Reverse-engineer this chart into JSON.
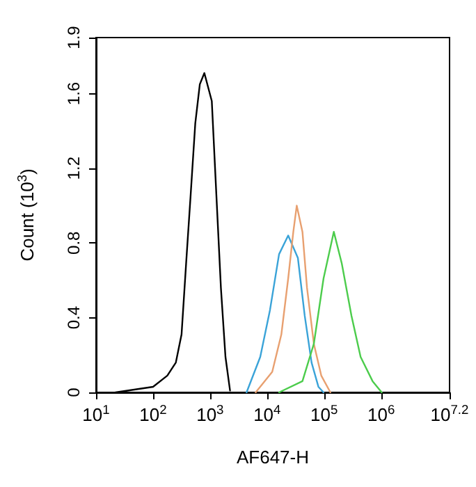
{
  "chart_data": {
    "type": "line",
    "xlabel": "AF647-H",
    "ylabel": "Count (10$^{3}$)",
    "log": "x",
    "grid": false,
    "marker": "none",
    "line_style": "solid",
    "xlim": [
      10,
      15848932
    ],
    "ylim": [
      0,
      1.9
    ],
    "xticks": [
      {
        "value": 10,
        "label": "10$^{1}$"
      },
      {
        "value": 100,
        "label": "10$^{2}$"
      },
      {
        "value": 1000,
        "label": "10$^{3}$"
      },
      {
        "value": 10000,
        "label": "10$^{4}$"
      },
      {
        "value": 100000,
        "label": "10$^{5}$"
      },
      {
        "value": 1000000,
        "label": "10$^{6}$"
      },
      {
        "value": 15848932,
        "label": "10$^{7.2}$"
      }
    ],
    "yticks": [
      0,
      0.4,
      0.8,
      1.2,
      1.6,
      1.9
    ],
    "series": [
      {
        "color": "#000000",
        "x": [
          22,
          100,
          178,
          251,
          316,
          380,
          457,
          550,
          661,
          794,
          1072,
          1288,
          1549,
          1862,
          2239
        ],
        "values": [
          0,
          0.03,
          0.09,
          0.16,
          0.31,
          0.69,
          1.06,
          1.44,
          1.65,
          1.71,
          1.56,
          1.06,
          0.56,
          0.19,
          0.01
        ]
      },
      {
        "color": "#3aa3d8",
        "x": [
          4365,
          7586,
          11220,
          16218,
          23442,
          34674,
          45709,
          60256,
          79433,
          97724
        ],
        "values": [
          0,
          0.19,
          0.44,
          0.74,
          0.84,
          0.72,
          0.41,
          0.16,
          0.03,
          0
        ]
      },
      {
        "color": "#e8a070",
        "x": [
          6310,
          12303,
          17783,
          23442,
          28840,
          33113,
          41687,
          50119,
          66069,
          89125,
          128825
        ],
        "values": [
          0,
          0.11,
          0.31,
          0.61,
          0.86,
          1.0,
          0.86,
          0.56,
          0.26,
          0.09,
          0
        ]
      },
      {
        "color": "#4ccc4c",
        "x": [
          16218,
          41687,
          66069,
          97724,
          147911,
          204174,
          301995,
          436516,
          707946,
          1023293
        ],
        "values": [
          0,
          0.06,
          0.26,
          0.61,
          0.86,
          0.69,
          0.41,
          0.19,
          0.06,
          0
        ]
      }
    ]
  }
}
